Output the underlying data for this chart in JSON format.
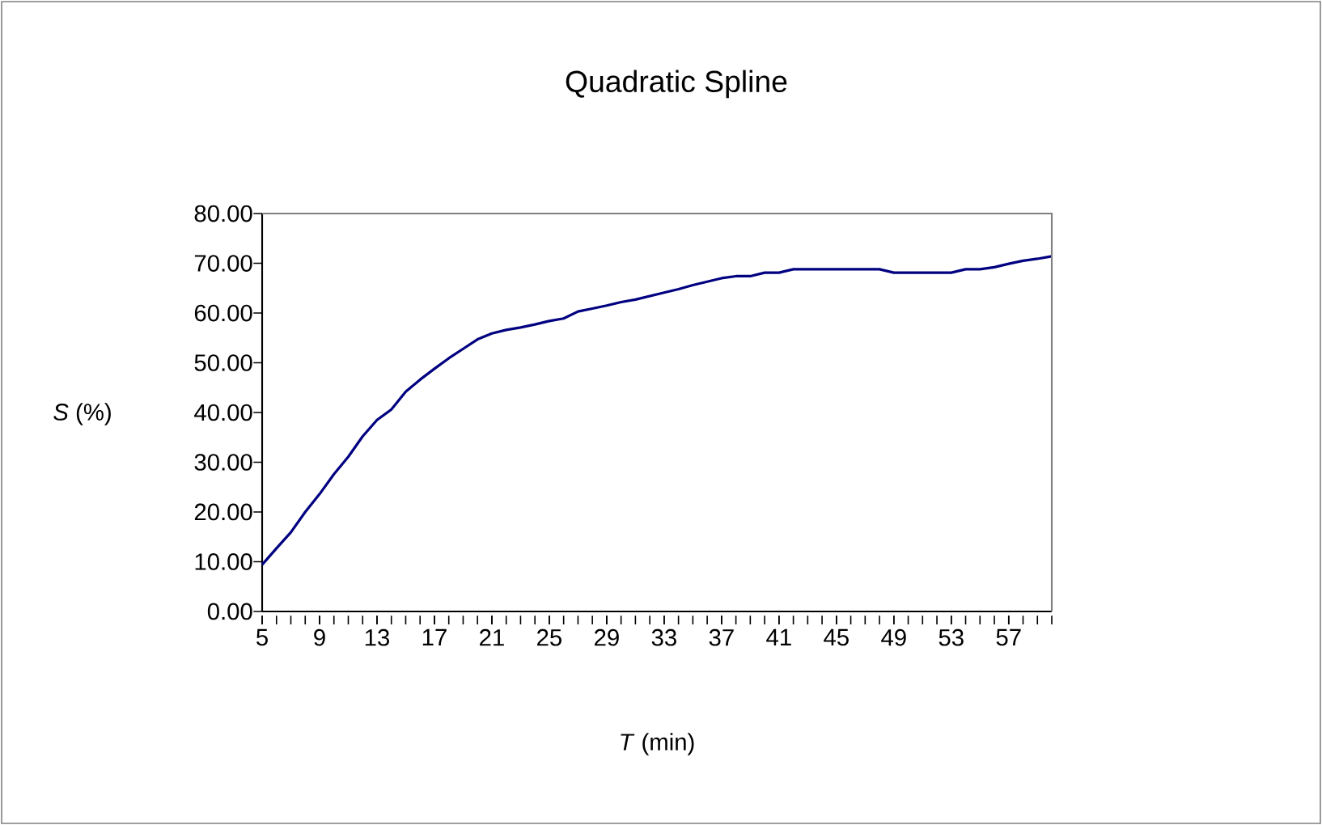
{
  "chart_data": {
    "type": "line",
    "title": "Quadratic Spline",
    "xlabel": "*T* (min)",
    "ylabel": "*S* (%)",
    "categories": [
      "5",
      null,
      null,
      null,
      "9",
      null,
      null,
      null,
      "13",
      null,
      null,
      null,
      "17",
      null,
      null,
      null,
      "21",
      null,
      null,
      null,
      "25",
      null,
      null,
      null,
      "29",
      null,
      null,
      null,
      "33",
      null,
      null,
      null,
      "37",
      null,
      null,
      null,
      "41",
      null,
      null,
      null,
      "45",
      null,
      null,
      null,
      "49",
      null,
      null,
      null,
      "53",
      null,
      null,
      null,
      "57",
      null,
      null,
      null
    ],
    "series": [
      {
        "color": "#000080",
        "values": [
          9.4,
          12.7,
          15.9,
          20.0,
          23.6,
          27.6,
          31.1,
          35.2,
          38.5,
          40.6,
          44.2,
          46.6,
          48.8,
          50.9,
          52.8,
          54.7,
          55.9,
          56.6,
          57.1,
          57.7,
          58.4,
          58.9,
          60.3,
          60.9,
          61.5,
          62.2,
          62.7,
          63.4,
          64.1,
          64.8,
          65.6,
          66.3,
          67.0,
          67.4,
          67.4,
          68.1,
          68.1,
          68.8,
          68.8,
          68.8,
          68.8,
          68.8,
          68.8,
          68.8,
          68.1,
          68.1,
          68.1,
          68.1,
          68.1,
          68.8,
          68.8,
          69.2,
          69.9,
          70.5,
          70.9,
          71.4
        ]
      }
    ],
    "ylim": [
      0,
      80
    ],
    "yticks": [
      {
        "value": 0,
        "label": "0.00"
      },
      {
        "value": 10,
        "label": "10.00"
      },
      {
        "value": 20,
        "label": "20.00"
      },
      {
        "value": 30,
        "label": "30.00"
      },
      {
        "value": 40,
        "label": "40.00"
      },
      {
        "value": 50,
        "label": "50.00"
      },
      {
        "value": 60,
        "label": "60.00"
      },
      {
        "value": 70,
        "label": "70.00"
      },
      {
        "value": 80,
        "label": "80.00"
      }
    ],
    "grid": false,
    "legend": false,
    "marker": "none",
    "line_style": "solid"
  }
}
